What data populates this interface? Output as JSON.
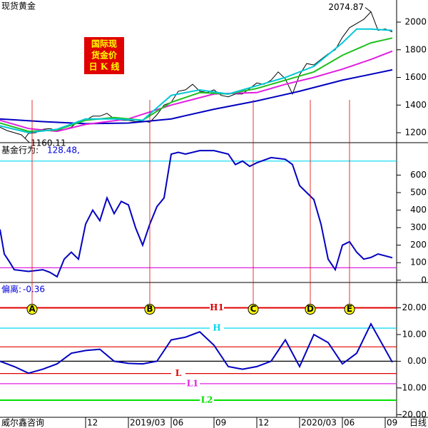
{
  "chart_data": [
    {
      "type": "line",
      "title": "现货黄金",
      "ylim": [
        1128,
        2160
      ],
      "yticks": [
        1200,
        1400,
        1600,
        1800,
        2000
      ],
      "annotations": [
        {
          "text": "2074.87",
          "x": 26,
          "y": 2074.87
        },
        {
          "text": "1160.11",
          "x": 1.75,
          "y": 1160.11
        }
      ],
      "badge": [
        "国际现",
        "货金价",
        "日 K 线"
      ],
      "series": [
        {
          "color": "#000000",
          "x": [
            0,
            0.5,
            1,
            1.5,
            1.75,
            2,
            2.5,
            3,
            3.5,
            4,
            4.5,
            5,
            5.5,
            6,
            6.5,
            7,
            7.5,
            8,
            8.5,
            9,
            9.5,
            10,
            10.5,
            11,
            11.5,
            12,
            12.5,
            13,
            13.5,
            14,
            14.5,
            15,
            15.5,
            16,
            16.5,
            17,
            17.5,
            18,
            18.5,
            19,
            19.5,
            20,
            20.5,
            21,
            21.5,
            22,
            22.5,
            23,
            23.5,
            24,
            24.5,
            25,
            25.5,
            26,
            26.5,
            27,
            27.5
          ],
          "values": [
            1240,
            1215,
            1200,
            1185,
            1160.11,
            1195,
            1200,
            1225,
            1230,
            1215,
            1225,
            1240,
            1285,
            1290,
            1320,
            1320,
            1340,
            1300,
            1290,
            1290,
            1280,
            1285,
            1275,
            1330,
            1400,
            1420,
            1500,
            1510,
            1550,
            1500,
            1490,
            1510,
            1470,
            1460,
            1480,
            1480,
            1520,
            1560,
            1550,
            1580,
            1640,
            1590,
            1480,
            1620,
            1700,
            1690,
            1730,
            1770,
            1800,
            1890,
            1960,
            1990,
            2020,
            2074.87,
            1940,
            1950,
            1930
          ]
        },
        {
          "color": "#0000c0",
          "x": [
            0,
            3,
            6,
            9,
            12,
            15,
            18,
            21,
            24,
            27.5
          ],
          "values": [
            1300,
            1280,
            1265,
            1270,
            1300,
            1370,
            1430,
            1500,
            1580,
            1655
          ]
        },
        {
          "color": "#e020e0",
          "x": [
            0,
            2,
            4,
            6,
            9,
            12,
            15,
            18,
            20,
            22,
            24,
            26,
            27.5
          ],
          "values": [
            1290,
            1230,
            1210,
            1260,
            1300,
            1400,
            1480,
            1490,
            1550,
            1600,
            1660,
            1730,
            1790
          ]
        },
        {
          "color": "#20c020",
          "x": [
            0,
            2,
            4,
            6,
            8,
            10,
            12,
            14,
            16,
            18,
            20,
            22,
            24,
            26,
            27.5
          ],
          "values": [
            1270,
            1210,
            1220,
            1290,
            1310,
            1290,
            1420,
            1490,
            1480,
            1520,
            1580,
            1640,
            1760,
            1850,
            1885
          ]
        },
        {
          "color": "#00c8d8",
          "x": [
            0,
            2,
            4,
            6,
            8,
            10,
            12,
            14,
            16,
            18,
            20,
            22,
            24,
            25,
            26,
            27.5
          ],
          "values": [
            1250,
            1200,
            1225,
            1300,
            1300,
            1290,
            1470,
            1510,
            1480,
            1540,
            1600,
            1680,
            1850,
            1950,
            1950,
            1940
          ]
        }
      ]
    },
    {
      "type": "line",
      "title": "基金行为:",
      "readout": "128.48,",
      "ylim": [
        -13,
        785
      ],
      "yticks": [
        0,
        100,
        200,
        300,
        400,
        500,
        600
      ],
      "ref_lines": [
        {
          "value": 680,
          "color": "#00d8f0"
        },
        {
          "value": 71,
          "color": "#e020e0"
        }
      ],
      "series": [
        {
          "color": "#0000c0",
          "x": [
            0,
            0.3,
            0.7,
            1,
            2,
            3,
            3.5,
            4,
            4.5,
            5,
            5.5,
            6,
            6.5,
            7,
            7.5,
            8,
            8.5,
            9,
            9.5,
            10,
            10.5,
            11,
            11.5,
            12,
            12.5,
            13,
            14,
            15,
            16,
            16.5,
            17,
            17.5,
            18,
            19,
            20,
            20.5,
            21,
            21.5,
            22,
            22.5,
            23,
            23.5,
            24,
            24.5,
            25,
            25.5,
            26,
            26.5,
            27.5
          ],
          "values": [
            290,
            150,
            100,
            60,
            50,
            60,
            45,
            20,
            120,
            160,
            120,
            320,
            400,
            340,
            470,
            380,
            450,
            430,
            300,
            200,
            320,
            420,
            470,
            720,
            730,
            720,
            740,
            740,
            720,
            660,
            680,
            650,
            670,
            700,
            690,
            660,
            540,
            500,
            460,
            320,
            120,
            60,
            200,
            220,
            160,
            120,
            130,
            150,
            128.48
          ]
        }
      ]
    },
    {
      "type": "line",
      "title": "偏离:",
      "readout": "-0.36",
      "ylim": [
        -21,
        29.5
      ],
      "yticks": [
        {
          "value": 20,
          "label": "20.00"
        },
        {
          "value": 10,
          "label": "10.00"
        },
        {
          "value": 0,
          "label": "0.00"
        },
        {
          "value": -10,
          "label": "-10.00"
        },
        {
          "value": -20,
          "label": "-20.00"
        }
      ],
      "ref_lines": [
        {
          "value": 20,
          "color": "#e00000",
          "label": "H1",
          "label_x": 15.2
        },
        {
          "value": 12.4,
          "color": "#00d8f0",
          "label": "H",
          "label_x": 15.2
        },
        {
          "value": 5.4,
          "color": "#e00000"
        },
        {
          "value": 0,
          "color": "#000000"
        },
        {
          "value": -4.6,
          "color": "#e00000",
          "label": "L",
          "label_x": 12.5
        },
        {
          "value": -8.4,
          "color": "#e020e0",
          "label": "L1",
          "label_x": 13.5
        },
        {
          "value": -14.6,
          "color": "#00e000",
          "label": "L2",
          "label_x": 14.5
        }
      ],
      "markers": [
        {
          "label": "A",
          "x": 2.25
        },
        {
          "label": "B",
          "x": 10.5
        },
        {
          "label": "C",
          "x": 17.75
        },
        {
          "label": "D",
          "x": 21.75
        },
        {
          "label": "E",
          "x": 24.5
        }
      ],
      "series": [
        {
          "color": "#0000c0",
          "x": [
            0,
            1,
            2,
            3,
            4,
            5,
            6,
            7,
            8,
            9,
            10,
            11,
            12,
            13,
            14,
            15,
            16,
            17,
            18,
            19,
            20,
            21,
            22,
            23,
            24,
            25,
            26,
            27.5
          ],
          "values": [
            0,
            -2,
            -4.5,
            -3,
            -1,
            3,
            4,
            4.5,
            0,
            -0.8,
            -1,
            0,
            8,
            9,
            11,
            6,
            -2,
            -3,
            -2,
            0,
            8,
            -2,
            10,
            7,
            -1,
            3,
            14,
            -0.36
          ]
        }
      ]
    }
  ],
  "x_axis": {
    "xlim": [
      0,
      27.8
    ],
    "xticks": [
      {
        "value": 6,
        "label": "12"
      },
      {
        "value": 9,
        "label": "2019/03"
      },
      {
        "value": 12,
        "label": "06"
      },
      {
        "value": 15,
        "label": "09"
      },
      {
        "value": 18,
        "label": "12"
      },
      {
        "value": 21,
        "label": "2020/03"
      },
      {
        "value": 24,
        "label": "06"
      },
      {
        "value": 27,
        "label": "09"
      }
    ]
  },
  "footer": {
    "source": "威尔鑫咨询",
    "period": "日线"
  }
}
